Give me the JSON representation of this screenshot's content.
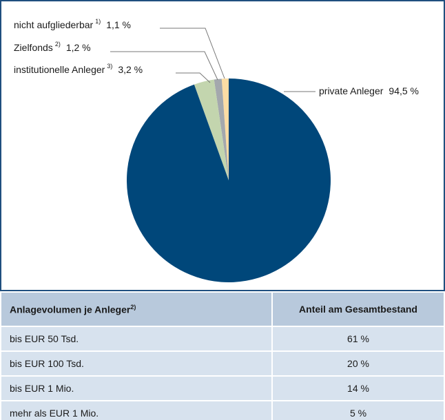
{
  "chart_data": {
    "type": "pie",
    "categories": [
      "nicht aufgliederbar",
      "Zielfonds",
      "institutionelle Anleger",
      "private Anleger"
    ],
    "footnotes": [
      "1)",
      "2)",
      "3)",
      null
    ],
    "values": [
      1.1,
      1.2,
      3.2,
      94.5
    ],
    "value_labels": [
      "1,1 %",
      "1,2 %",
      "3,2 %",
      "94,5 %"
    ],
    "colors": [
      "#fcdca4",
      "#a4a8ad",
      "#c3d5ae",
      "#00477a"
    ]
  },
  "table": {
    "header": [
      "Anlagevolumen je Anleger",
      "Anteil am Gesamtbestand"
    ],
    "header_note": "2)",
    "rows": [
      [
        "bis EUR 50 Tsd.",
        "61 %"
      ],
      [
        "bis EUR 100 Tsd.",
        "20 %"
      ],
      [
        "bis EUR 1 Mio.",
        "14 %"
      ],
      [
        "mehr als EUR 1 Mio.",
        "5 %"
      ]
    ]
  }
}
